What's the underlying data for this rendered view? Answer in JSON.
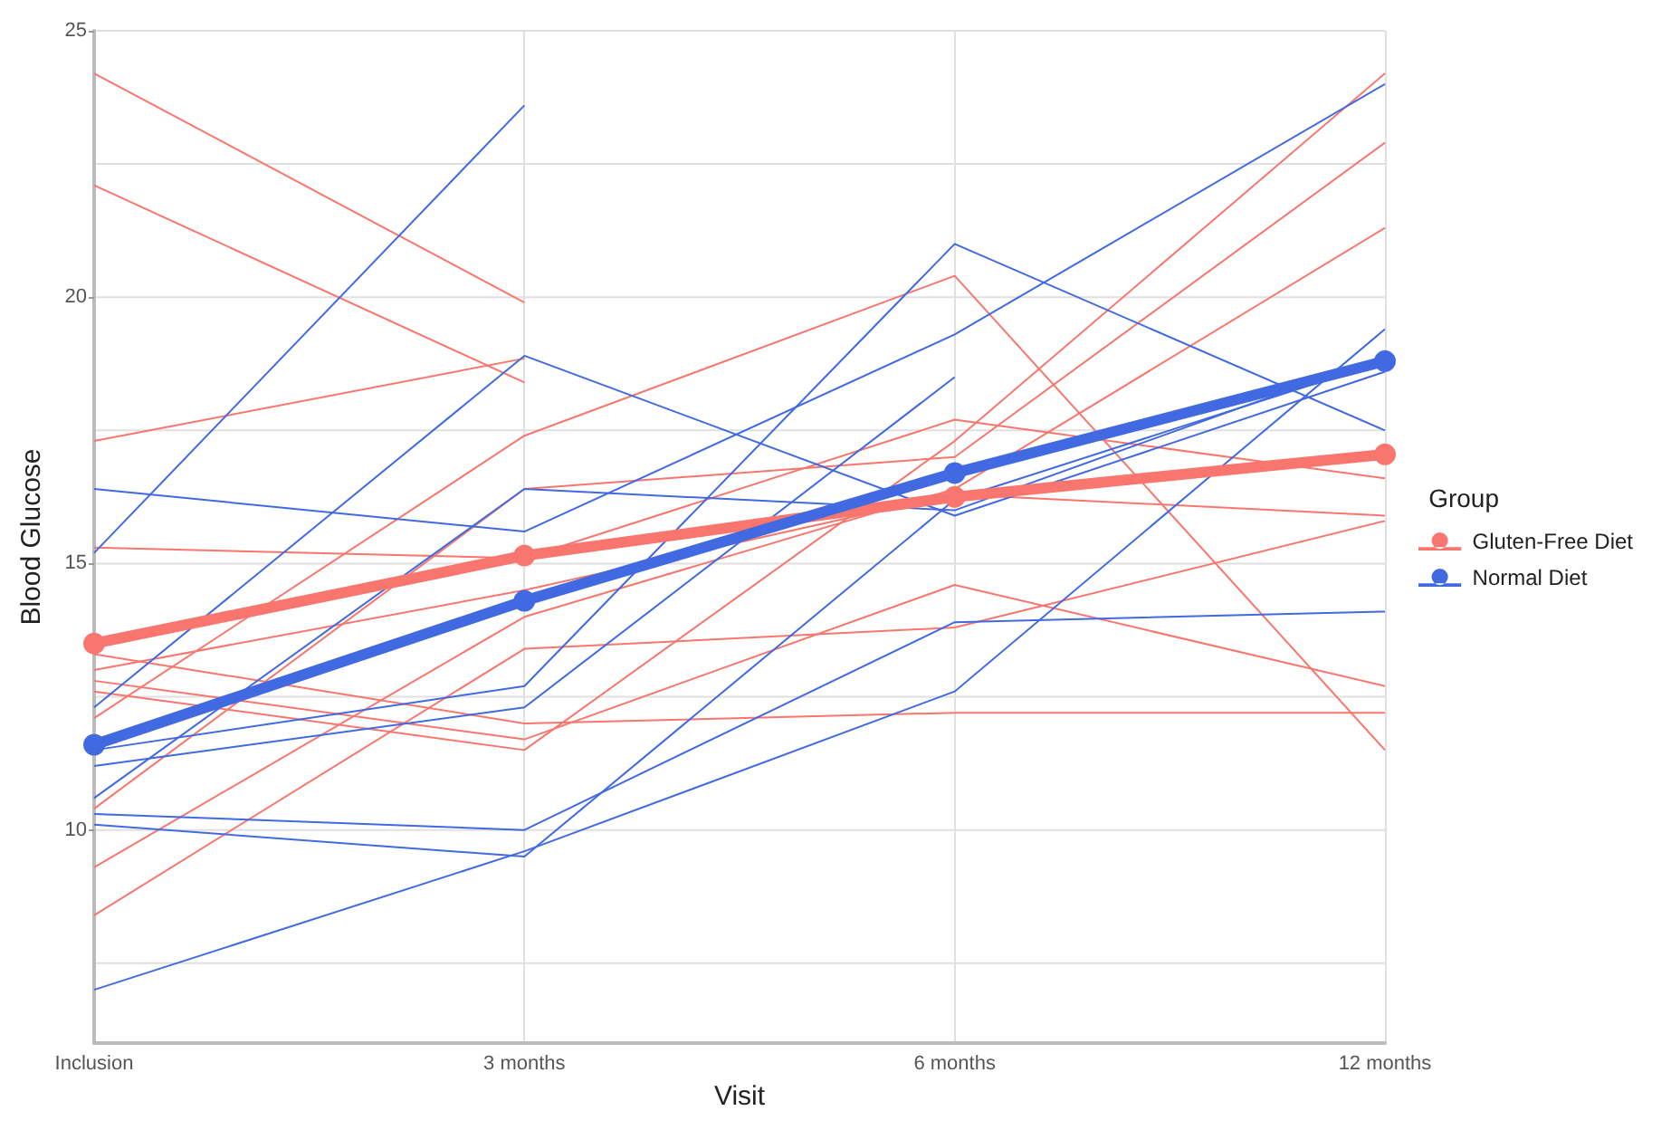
{
  "chart_data": {
    "type": "line",
    "xlabel": "Visit",
    "ylabel": "Blood Glucose",
    "legend_title": "Group",
    "legend": "right",
    "grid": true,
    "categories": [
      "Inclusion",
      "3 months",
      "6 months",
      "12 months"
    ],
    "ylim": [
      6,
      25
    ],
    "yticks": [
      {
        "value": 7.5,
        "label": null
      },
      10,
      {
        "value": 12.5,
        "label": null
      },
      15,
      {
        "value": 17.5,
        "label": null
      },
      20,
      {
        "value": 22.5,
        "label": null
      },
      25
    ],
    "series": [
      {
        "color": "#f8766d",
        "marker": "none",
        "values": [
          24.2,
          19.9,
          null,
          null
        ]
      },
      {
        "color": "#f8766d",
        "marker": "none",
        "values": [
          22.1,
          18.4,
          null,
          null
        ]
      },
      {
        "color": "#f8766d",
        "marker": "none",
        "values": [
          17.3,
          18.85,
          null,
          null
        ]
      },
      {
        "color": "#f8766d",
        "marker": "none",
        "values": [
          15.3,
          15.1,
          17.7,
          16.6
        ]
      },
      {
        "color": "#f8766d",
        "marker": "none",
        "values": [
          13.3,
          12.0,
          12.2,
          12.2
        ]
      },
      {
        "color": "#f8766d",
        "marker": "none",
        "values": [
          12.6,
          11.5,
          17.3,
          24.2
        ]
      },
      {
        "color": "#f8766d",
        "marker": "none",
        "values": [
          12.1,
          17.4,
          20.4,
          11.5
        ]
      },
      {
        "color": "#f8766d",
        "marker": "none",
        "values": [
          10.4,
          16.4,
          17.0,
          22.9
        ]
      },
      {
        "color": "#f8766d",
        "marker": "none",
        "values": [
          9.3,
          14.0,
          16.4,
          21.3
        ]
      },
      {
        "color": "#f8766d",
        "marker": "none",
        "values": [
          8.4,
          13.4,
          13.8,
          15.8
        ]
      },
      {
        "color": "#f8766d",
        "marker": "none",
        "values": [
          12.8,
          11.7,
          14.6,
          12.7
        ]
      },
      {
        "color": "#f8766d",
        "marker": "none",
        "values": [
          13.0,
          14.5,
          16.3,
          15.9
        ]
      },
      {
        "color": "#4169e1",
        "marker": "none",
        "values": [
          15.2,
          23.6,
          null,
          null
        ]
      },
      {
        "color": "#4169e1",
        "marker": "none",
        "values": [
          16.4,
          15.6,
          19.3,
          24.0
        ]
      },
      {
        "color": "#4169e1",
        "marker": "none",
        "values": [
          12.3,
          18.9,
          15.9,
          18.6
        ]
      },
      {
        "color": "#4169e1",
        "marker": "none",
        "values": [
          11.5,
          12.7,
          21.0,
          17.5
        ]
      },
      {
        "color": "#4169e1",
        "marker": "none",
        "values": [
          11.2,
          12.3,
          18.5,
          null
        ]
      },
      {
        "color": "#4169e1",
        "marker": "none",
        "values": [
          7.0,
          9.6,
          12.6,
          19.4
        ]
      },
      {
        "color": "#4169e1",
        "marker": "none",
        "values": [
          10.3,
          10.0,
          13.9,
          14.1
        ]
      },
      {
        "color": "#4169e1",
        "marker": "none",
        "values": [
          10.1,
          9.5,
          16.2,
          18.8
        ]
      },
      {
        "color": "#4169e1",
        "marker": "none",
        "values": [
          10.6,
          16.4,
          16.0,
          18.9
        ]
      },
      {
        "name": "Gluten-Free Diet",
        "color": "#f8766d",
        "marker": "circle",
        "values": [
          13.5,
          15.15,
          16.25,
          17.05
        ]
      },
      {
        "name": "Normal Diet",
        "color": "#4169e1",
        "marker": "circle",
        "values": [
          11.6,
          14.3,
          16.7,
          18.8
        ]
      }
    ]
  }
}
